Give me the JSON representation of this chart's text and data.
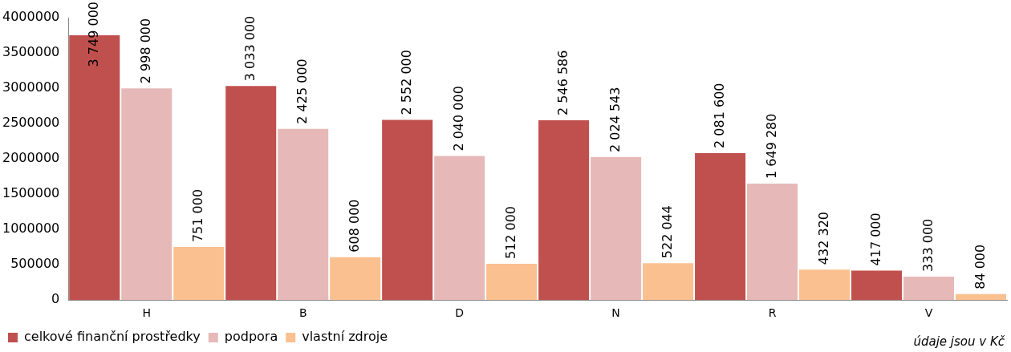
{
  "chart_data": {
    "type": "bar",
    "categories": [
      "H",
      "B",
      "D",
      "N",
      "R",
      "V"
    ],
    "series": [
      {
        "name": "celkové finanční prostředky",
        "color": "#c0504d",
        "values": [
          3749000,
          3033000,
          2552000,
          2546586,
          2081600,
          417000
        ],
        "value_labels": [
          "3 749 000",
          "3 033 000",
          "2 552 000",
          "2 546 586",
          "2 081 600",
          "417 000"
        ]
      },
      {
        "name": "podpora",
        "color": "#e6b9b8",
        "values": [
          2998000,
          2425000,
          2040000,
          2024543,
          1649280,
          333000
        ],
        "value_labels": [
          "2 998 000",
          "2 425 000",
          "2 040 000",
          "2 024 543",
          "1 649 280",
          "333 000"
        ]
      },
      {
        "name": "vlastní zdroje",
        "color": "#fac090",
        "values": [
          751000,
          608000,
          512000,
          522044,
          432320,
          84000
        ],
        "value_labels": [
          "751 000",
          "608 000",
          "512 000",
          "522 044",
          "432 320",
          "84 000"
        ]
      }
    ],
    "ylim": [
      0,
      4000000
    ],
    "yticks": [
      0,
      500000,
      1000000,
      1500000,
      2000000,
      2500000,
      3000000,
      3500000,
      4000000
    ],
    "grid": false,
    "legend": "bottom left",
    "annotations": [
      "údaje jsou v Kč"
    ]
  }
}
